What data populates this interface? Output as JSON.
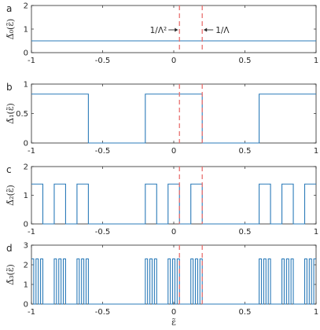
{
  "chart_data": [
    {
      "type": "line",
      "panel_label": "a",
      "ylabel": "Δ̃₀(ε̃)",
      "xlim": [
        -1,
        1
      ],
      "ylim": [
        0,
        2
      ],
      "xticks": [
        -1,
        -0.5,
        0,
        0.5,
        1
      ],
      "xtick_labels": [
        "-1",
        "-0.5",
        "0",
        "0.5",
        "1"
      ],
      "yticks": [
        0,
        1,
        2
      ],
      "ytick_labels": [
        "0",
        "1",
        "2"
      ],
      "series": [
        {
          "x": [
            -1,
            1
          ],
          "y": [
            0.5,
            0.5
          ]
        }
      ],
      "vlines": [
        0.04,
        0.2
      ],
      "annotations": [
        {
          "text": "1/Λ²",
          "arrow_to": 0.04
        },
        {
          "text": "1/Λ",
          "arrow_to": 0.2
        }
      ]
    },
    {
      "type": "line",
      "panel_label": "b",
      "ylabel": "Δ̃₁(ε̃)",
      "xlim": [
        -1,
        1
      ],
      "ylim": [
        0,
        1
      ],
      "xticks": [
        -1,
        -0.5,
        0,
        0.5,
        1
      ],
      "xtick_labels": [
        "-1",
        "-0.5",
        "0",
        "0.5",
        "1"
      ],
      "yticks": [
        0,
        0.5,
        1
      ],
      "ytick_labels": [
        "0",
        "0.5",
        "1"
      ],
      "level": 0.83,
      "on_intervals": [
        [
          -1,
          -0.6
        ],
        [
          -0.2,
          0.2
        ],
        [
          0.6,
          1
        ]
      ],
      "vlines": [
        0.04,
        0.2
      ]
    },
    {
      "type": "line",
      "panel_label": "c",
      "ylabel": "Δ̃₂(ε̃)",
      "xlim": [
        -1,
        1
      ],
      "ylim": [
        0,
        2
      ],
      "xticks": [
        -1,
        -0.5,
        0,
        0.5,
        1
      ],
      "xtick_labels": [
        "-1",
        "-0.5",
        "0",
        "0.5",
        "1"
      ],
      "yticks": [
        0,
        1,
        2
      ],
      "ytick_labels": [
        "0",
        "1",
        "2"
      ],
      "level": 1.39,
      "on_intervals": [
        [
          -1,
          -0.92
        ],
        [
          -0.84,
          -0.76
        ],
        [
          -0.68,
          -0.6
        ],
        [
          -0.2,
          -0.12
        ],
        [
          -0.04,
          0.04
        ],
        [
          0.12,
          0.2
        ],
        [
          0.6,
          0.68
        ],
        [
          0.76,
          0.84
        ],
        [
          0.92,
          1
        ]
      ],
      "vlines": [
        0.04,
        0.2
      ]
    },
    {
      "type": "line",
      "panel_label": "d",
      "ylabel": "Δ̃₃(ε̃)",
      "xlabel": "ε̃",
      "xlim": [
        -1,
        1
      ],
      "ylim": [
        0,
        3
      ],
      "xticks": [
        -1,
        -0.5,
        0,
        0.5,
        1
      ],
      "xtick_labels": [
        "-1",
        "-0.5",
        "0",
        "0.5",
        "1"
      ],
      "yticks": [
        0,
        1,
        2,
        3
      ],
      "ytick_labels": [
        "0",
        "1",
        "2",
        "3"
      ],
      "level": 2.3,
      "on_intervals": [
        [
          -1,
          -0.984
        ],
        [
          -0.968,
          -0.952
        ],
        [
          -0.936,
          -0.92
        ],
        [
          -0.84,
          -0.824
        ],
        [
          -0.808,
          -0.792
        ],
        [
          -0.776,
          -0.76
        ],
        [
          -0.68,
          -0.664
        ],
        [
          -0.648,
          -0.632
        ],
        [
          -0.616,
          -0.6
        ],
        [
          -0.2,
          -0.184
        ],
        [
          -0.168,
          -0.152
        ],
        [
          -0.136,
          -0.12
        ],
        [
          -0.04,
          -0.024
        ],
        [
          -0.008,
          0.008
        ],
        [
          0.024,
          0.04
        ],
        [
          0.12,
          0.136
        ],
        [
          0.152,
          0.168
        ],
        [
          0.184,
          0.2
        ],
        [
          0.6,
          0.616
        ],
        [
          0.632,
          0.648
        ],
        [
          0.664,
          0.68
        ],
        [
          0.76,
          0.776
        ],
        [
          0.792,
          0.808
        ],
        [
          0.824,
          0.84
        ],
        [
          0.92,
          0.936
        ],
        [
          0.952,
          0.968
        ],
        [
          0.984,
          1
        ]
      ],
      "vlines": [
        0.04,
        0.2
      ]
    }
  ]
}
